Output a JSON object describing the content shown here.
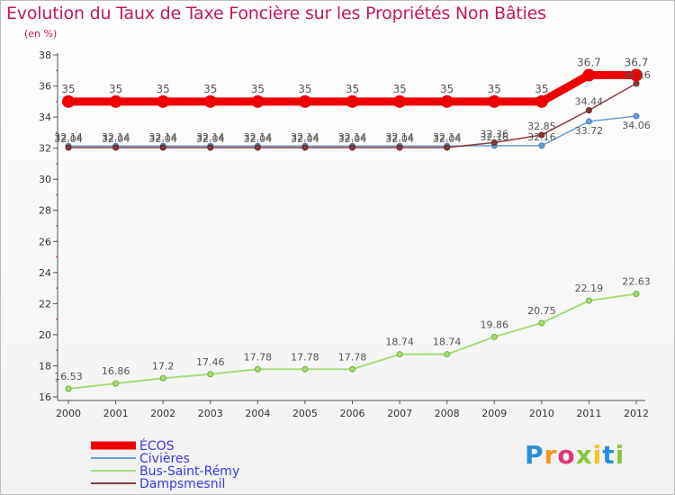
{
  "chart_data": {
    "type": "line",
    "title": "Evolution du Taux de Taxe Foncière sur les Propriétés Non Bâties",
    "unit_label": "(en %)",
    "xlabel": "",
    "ylabel": "(en %)",
    "ylim": [
      16,
      38
    ],
    "yticks": [
      16,
      18,
      20,
      22,
      24,
      26,
      28,
      30,
      32,
      34,
      36,
      38
    ],
    "categories": [
      "2000",
      "2001",
      "2002",
      "2003",
      "2004",
      "2005",
      "2006",
      "2007",
      "2008",
      "2009",
      "2010",
      "2011",
      "2012"
    ],
    "series": [
      {
        "name": "ÉCOS",
        "color": "#ee0000",
        "values": [
          35,
          35,
          35,
          35,
          35,
          35,
          35,
          35,
          35,
          35,
          35,
          36.7,
          36.7
        ],
        "labels": [
          "35",
          "35",
          "35",
          "35",
          "35",
          "35",
          "35",
          "35",
          "35",
          "35",
          "35",
          "36.7",
          "36.7"
        ]
      },
      {
        "name": "Civières",
        "color": "#6a9ed3",
        "values": [
          32.14,
          32.14,
          32.14,
          32.14,
          32.14,
          32.14,
          32.14,
          32.14,
          32.14,
          32.16,
          32.16,
          33.72,
          34.06
        ],
        "labels": [
          "32.14",
          "32.14",
          "32.14",
          "32.14",
          "32.14",
          "32.14",
          "32.14",
          "32.14",
          "32.14",
          "32.16",
          "32.16",
          "33.72",
          "34.06"
        ]
      },
      {
        "name": "Bus-Saint-Rémy",
        "color": "#a6dd7a",
        "values": [
          16.53,
          16.86,
          17.2,
          17.46,
          17.78,
          17.78,
          17.78,
          18.74,
          18.74,
          19.86,
          20.75,
          22.19,
          22.63
        ],
        "labels": [
          "16.53",
          "16.86",
          "17.2",
          "17.46",
          "17.78",
          "17.78",
          "17.78",
          "18.74",
          "18.74",
          "19.86",
          "20.75",
          "22.19",
          "22.63"
        ]
      },
      {
        "name": "Dampsmesnil",
        "color": "#8a3a3a",
        "values": [
          32.04,
          32.04,
          32.04,
          32.04,
          32.04,
          32.04,
          32.04,
          32.04,
          32.04,
          32.36,
          32.85,
          34.44,
          36.16
        ],
        "labels": [
          "32.04",
          "32.04",
          "32.04",
          "32.04",
          "32.04",
          "32.04",
          "32.04",
          "32.04",
          "32.04",
          "32.36",
          "32.85",
          "34.44",
          "36.16"
        ]
      }
    ],
    "grid": false,
    "legend_position": "bottom-left"
  },
  "brand": {
    "letters": [
      "P",
      "r",
      "o",
      "x",
      "i",
      "t",
      "i"
    ]
  }
}
